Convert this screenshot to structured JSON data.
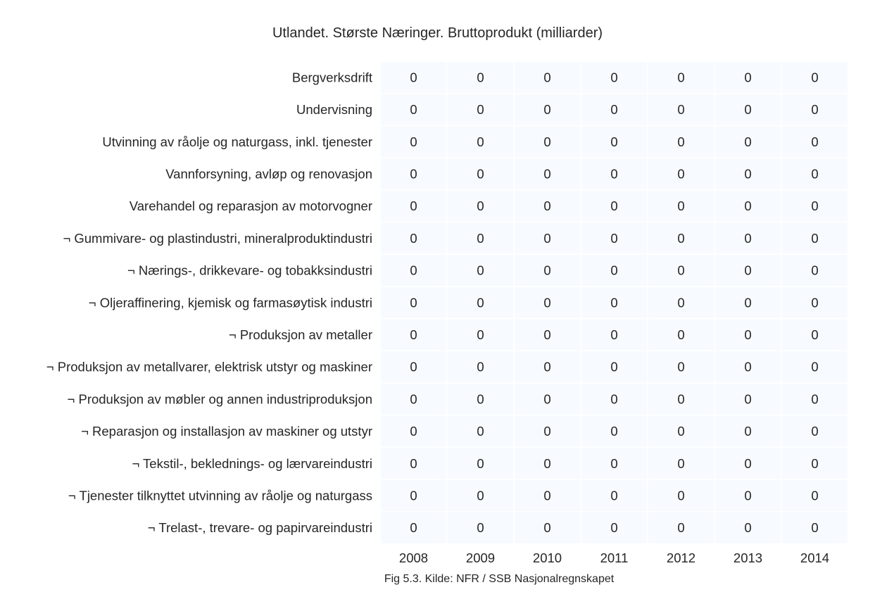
{
  "chart_data": {
    "type": "heatmap",
    "title": "Utlandet. Største Næringer. Bruttoprodukt (milliarder)",
    "caption": "Fig 5.3. Kilde: NFR / SSB Nasjonalregnskapet",
    "columns": [
      "2008",
      "2009",
      "2010",
      "2011",
      "2012",
      "2013",
      "2014"
    ],
    "rows": [
      "Bergverksdrift",
      "Undervisning",
      "Utvinning av råolje og naturgass, inkl. tjenester",
      "Vannforsyning, avløp og renovasjon",
      "Varehandel og reparasjon av motorvogner",
      "¬ Gummivare- og plastindustri, mineralproduktindustri",
      "¬ Nærings-, drikkevare- og tobakksindustri",
      "¬ Oljeraffinering, kjemisk og farmasøytisk industri",
      "¬ Produksjon av metaller",
      "¬ Produksjon av metallvarer, elektrisk utstyr og maskiner",
      "¬ Produksjon av møbler og annen industriproduksjon",
      "¬ Reparasjon og installasjon av maskiner og utstyr",
      "¬ Tekstil-, beklednings- og lærvareindustri",
      "¬ Tjenester tilknyttet utvinning av råolje og naturgass",
      "¬ Trelast-, trevare- og papirvareindustri"
    ],
    "values": [
      [
        0,
        0,
        0,
        0,
        0,
        0,
        0
      ],
      [
        0,
        0,
        0,
        0,
        0,
        0,
        0
      ],
      [
        0,
        0,
        0,
        0,
        0,
        0,
        0
      ],
      [
        0,
        0,
        0,
        0,
        0,
        0,
        0
      ],
      [
        0,
        0,
        0,
        0,
        0,
        0,
        0
      ],
      [
        0,
        0,
        0,
        0,
        0,
        0,
        0
      ],
      [
        0,
        0,
        0,
        0,
        0,
        0,
        0
      ],
      [
        0,
        0,
        0,
        0,
        0,
        0,
        0
      ],
      [
        0,
        0,
        0,
        0,
        0,
        0,
        0
      ],
      [
        0,
        0,
        0,
        0,
        0,
        0,
        0
      ],
      [
        0,
        0,
        0,
        0,
        0,
        0,
        0
      ],
      [
        0,
        0,
        0,
        0,
        0,
        0,
        0
      ],
      [
        0,
        0,
        0,
        0,
        0,
        0,
        0
      ],
      [
        0,
        0,
        0,
        0,
        0,
        0,
        0
      ],
      [
        0,
        0,
        0,
        0,
        0,
        0,
        0
      ]
    ],
    "cell_color": "#f7fbff",
    "gridline_color": "#ffffff"
  }
}
